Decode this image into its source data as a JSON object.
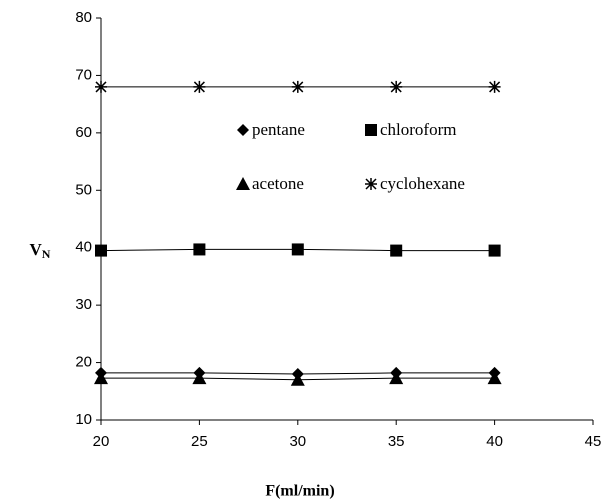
{
  "chart_data": {
    "type": "line",
    "y_label": "V",
    "y_label_sub": "N",
    "x_label": "F(ml/min)",
    "x": [
      20,
      25,
      30,
      35,
      40
    ],
    "series": [
      {
        "name": "pentane",
        "marker": "diamond",
        "color": "#000000",
        "values": [
          18.2,
          18.2,
          18.0,
          18.2,
          18.2
        ]
      },
      {
        "name": "chloroform",
        "marker": "square",
        "color": "#000000",
        "values": [
          39.5,
          39.7,
          39.7,
          39.5,
          39.5
        ]
      },
      {
        "name": "acetone",
        "marker": "triangle",
        "color": "#000000",
        "values": [
          17.3,
          17.3,
          17.0,
          17.3,
          17.3
        ]
      },
      {
        "name": "cyclohexane",
        "marker": "asterisk",
        "color": "#000000",
        "values": [
          68,
          68,
          68,
          68,
          68
        ]
      }
    ],
    "xlim": [
      20,
      45
    ],
    "xticks": [
      20,
      25,
      30,
      35,
      40,
      45
    ],
    "ylim": [
      10,
      80
    ],
    "yticks": [
      10,
      20,
      30,
      40,
      50,
      60,
      70,
      80
    ],
    "grid": false
  }
}
